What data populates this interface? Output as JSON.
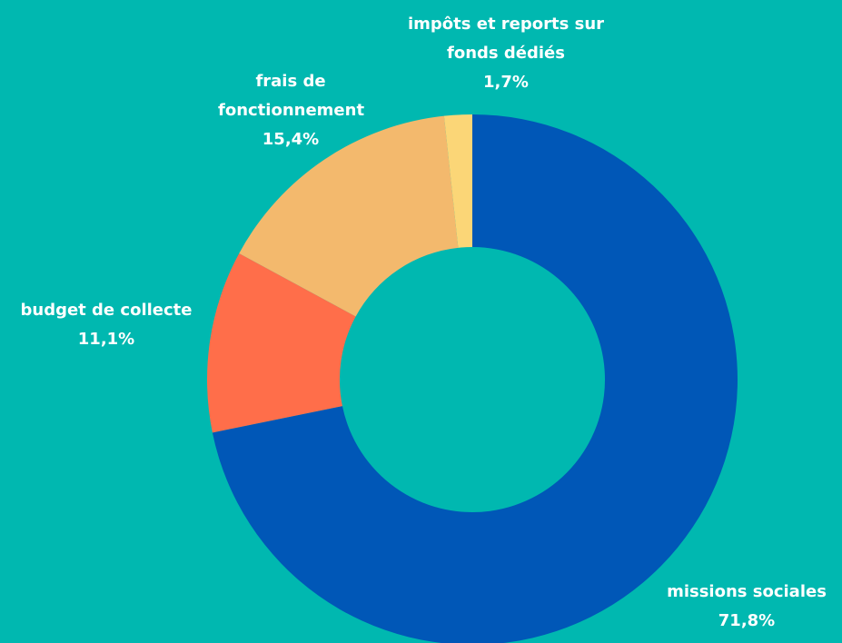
{
  "chart_data": {
    "type": "donut",
    "categories": [
      "missions sociales",
      "budget de collecte",
      "frais de fonctionnement",
      "impôts et reports sur fonds dédiés"
    ],
    "values": [
      71.8,
      11.1,
      15.4,
      1.7
    ],
    "value_labels": [
      "71,8%",
      "11,1%",
      "15,4%",
      "1,7%"
    ],
    "colors": [
      "#0057b7",
      "#ff6e4a",
      "#f3b96d",
      "#fbd677"
    ]
  }
}
